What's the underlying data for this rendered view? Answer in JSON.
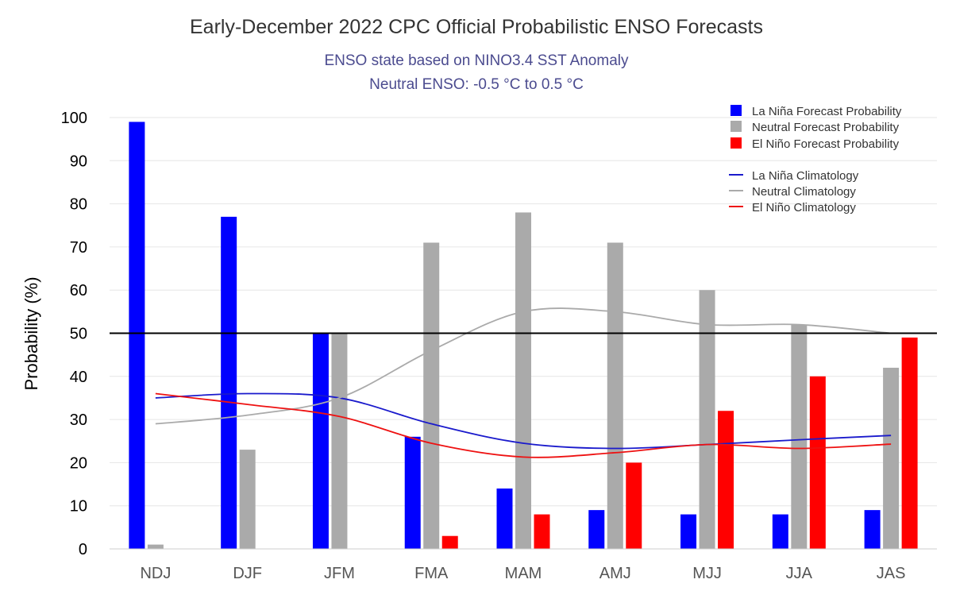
{
  "chart_data": {
    "type": "bar",
    "title": "Early-December 2022 CPC Official Probabilistic ENSO Forecasts",
    "subtitle": [
      "ENSO state based on NINO3.4 SST Anomaly",
      "Neutral ENSO: -0.5 °C to 0.5 °C"
    ],
    "xlabel": "",
    "ylabel": "Probability (%)",
    "ylim": [
      0,
      100
    ],
    "yticks": [
      "0",
      "10",
      "20",
      "30",
      "40",
      "50",
      "60",
      "70",
      "80",
      "90",
      "100"
    ],
    "reference_line": 50,
    "categories": [
      "NDJ",
      "DJF",
      "JFM",
      "FMA",
      "MAM",
      "AMJ",
      "MJJ",
      "JJA",
      "JAS"
    ],
    "series": [
      {
        "name": "La Niña Forecast Probability",
        "type": "bar",
        "color": "#0000ff",
        "values": [
          99,
          77,
          50,
          26,
          14,
          9,
          8,
          8,
          9
        ]
      },
      {
        "name": "Neutral Forecast Probability",
        "type": "bar",
        "color": "#aaaaaa",
        "values": [
          1,
          23,
          50,
          71,
          78,
          71,
          60,
          52,
          42
        ]
      },
      {
        "name": "El Niño Forecast Probability",
        "type": "bar",
        "color": "#ff0000",
        "values": [
          0,
          0,
          0,
          3,
          8,
          20,
          32,
          40,
          49
        ]
      },
      {
        "name": "La Niña Climatology",
        "type": "line",
        "color": "#1a1acc",
        "values": [
          35,
          36,
          35,
          29,
          24.5,
          23.3,
          24.2,
          25.3,
          26.3
        ]
      },
      {
        "name": "Neutral Climatology",
        "type": "line",
        "color": "#aaaaaa",
        "values": [
          29,
          31,
          35,
          46,
          55,
          55,
          52,
          52,
          50
        ]
      },
      {
        "name": "El Niño Climatology",
        "type": "line",
        "color": "#ee1111",
        "values": [
          36,
          33.5,
          30.7,
          24.5,
          21.3,
          22.3,
          24.2,
          23.3,
          24.3
        ]
      }
    ],
    "legend_position": "top-right",
    "grid": true
  }
}
